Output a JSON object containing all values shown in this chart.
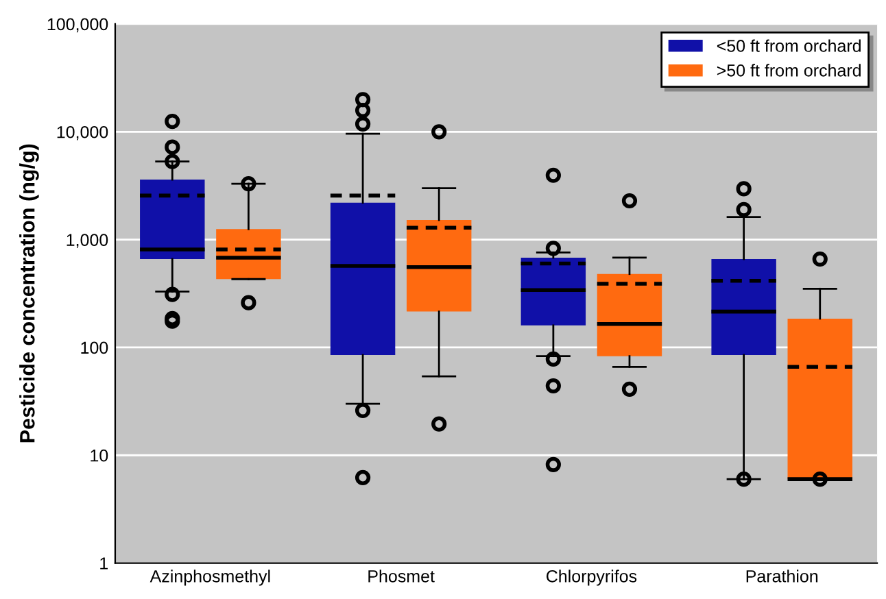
{
  "chart_data": {
    "type": "box",
    "ylabel": "Pesticide concentration (ng/g)",
    "categories": [
      "Azinphosmethyl",
      "Phosmet",
      "Chlorpyrifos",
      "Parathion"
    ],
    "log": "y",
    "ylim": [
      1,
      100000
    ],
    "yticks": [
      {
        "value": 1,
        "label": "1"
      },
      {
        "value": 10,
        "label": "10"
      },
      {
        "value": 100,
        "label": "100"
      },
      {
        "value": 1000,
        "label": "1,000"
      },
      {
        "value": 10000,
        "label": "10,000"
      },
      {
        "value": 100000,
        "label": "100,000"
      }
    ],
    "grid": "y",
    "legend": "top right",
    "series": [
      {
        "name": "<50 ft from orchard",
        "color": "#1010a8",
        "boxes": [
          {
            "low": 330,
            "q1": 660,
            "median": 810,
            "q3": 3600,
            "high": 5300,
            "mean": 2560,
            "outliers": [
              12500,
              7200,
              5300,
              310,
              185,
              175
            ]
          },
          {
            "low": 30,
            "q1": 85,
            "median": 570,
            "q3": 2200,
            "high": 9600,
            "mean": 2560,
            "outliers": [
              19900,
              15800,
              11800,
              26,
              6.2
            ]
          },
          {
            "low": 83,
            "q1": 160,
            "median": 340,
            "q3": 680,
            "high": 760,
            "mean": 600,
            "outliers": [
              3950,
              830,
              78,
              44,
              8.2
            ]
          },
          {
            "low": 6,
            "q1": 85,
            "median": 215,
            "q3": 660,
            "high": 1620,
            "mean": 415,
            "outliers": [
              2960,
              1900,
              6
            ]
          }
        ]
      },
      {
        "name": ">50 ft from orchard",
        "color": "#ff6a10",
        "boxes": [
          {
            "low": 430,
            "q1": 430,
            "median": 680,
            "q3": 1250,
            "high": 3300,
            "mean": 810,
            "outliers": [
              3300,
              260
            ]
          },
          {
            "low": 54,
            "q1": 215,
            "median": 555,
            "q3": 1520,
            "high": 3000,
            "mean": 1290,
            "outliers": [
              10000,
              19.5
            ]
          },
          {
            "low": 66,
            "q1": 83,
            "median": 165,
            "q3": 480,
            "high": 680,
            "mean": 390,
            "outliers": [
              2290,
              41
            ]
          },
          {
            "low": 6,
            "q1": 6,
            "median": 6,
            "q3": 185,
            "high": 350,
            "mean": 66,
            "outliers": [
              660,
              6
            ]
          }
        ]
      }
    ]
  }
}
